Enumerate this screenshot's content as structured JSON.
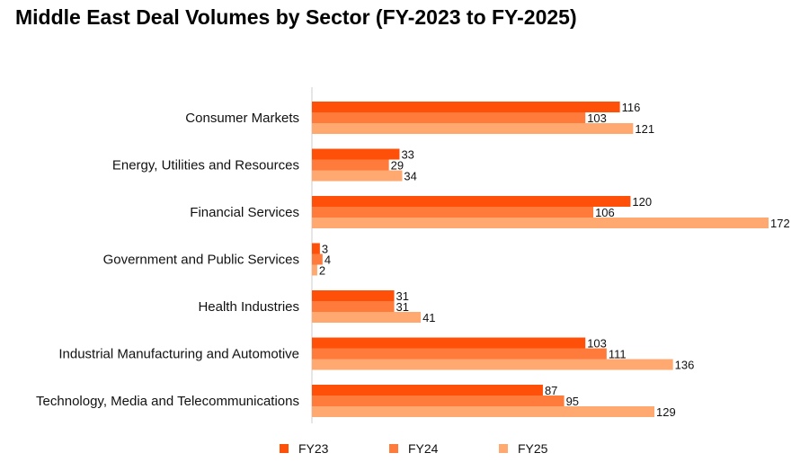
{
  "chart_data": {
    "type": "bar",
    "orientation": "horizontal",
    "title": "Middle East Deal Volumes by Sector (FY-2023 to FY-2025)",
    "categories": [
      "Consumer Markets",
      "Energy, Utilities and Resources",
      "Financial Services",
      "Government and Public Services",
      "Health Industries",
      "Industrial Manufacturing and Automotive",
      "Technology, Media and Telecommunications"
    ],
    "series": [
      {
        "name": "FY23",
        "color": "#FE5009",
        "values": [
          116,
          33,
          120,
          3,
          31,
          103,
          87
        ]
      },
      {
        "name": "FY24",
        "color": "#FE7B3B",
        "values": [
          103,
          29,
          106,
          4,
          31,
          111,
          95
        ]
      },
      {
        "name": "FY25",
        "color": "#FFA970",
        "values": [
          121,
          34,
          172,
          2,
          41,
          136,
          129
        ]
      }
    ],
    "xlim": [
      0,
      172
    ],
    "grid": false,
    "data_labels": true,
    "legend_position": "bottom"
  }
}
